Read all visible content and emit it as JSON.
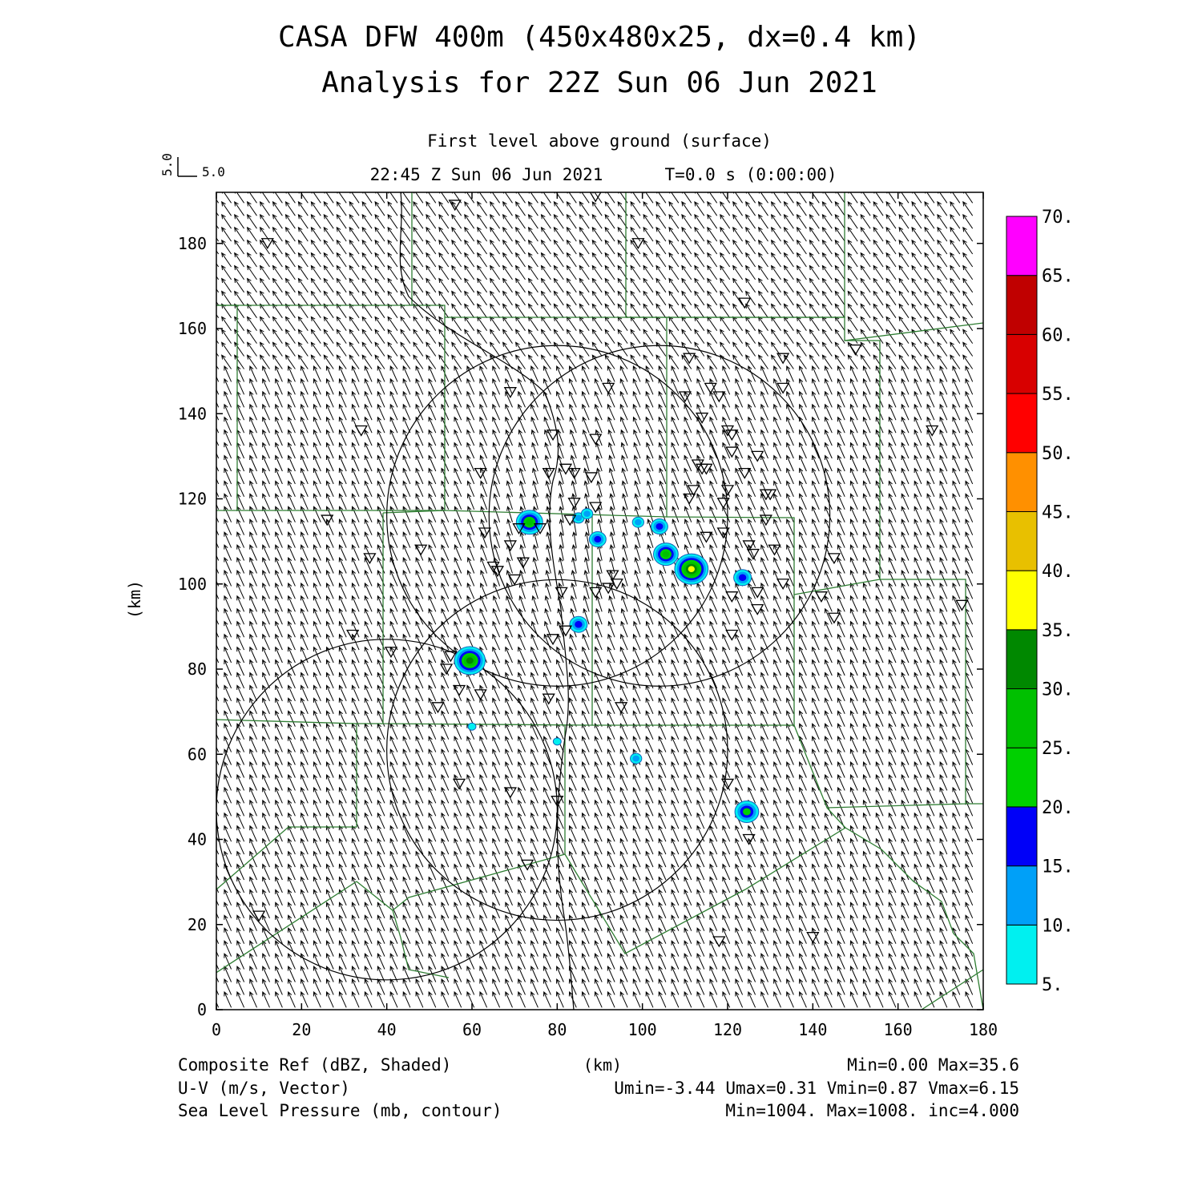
{
  "header": {
    "title_line1": "CASA DFW 400m (450x480x25, dx=0.4 km)",
    "title_line2": "Analysis for 22Z Sun 06 Jun 2021",
    "level": "First level above ground (surface)",
    "valid_time": "22:45 Z Sun 06 Jun 2021",
    "forecast_time": "T=0.0 s (0:00:00)"
  },
  "vector_key": {
    "u_label": "5.0",
    "v_label": "5.0"
  },
  "footer": {
    "field1": "Composite Ref (dBZ, Shaded)",
    "field1_stats": "Min=0.00 Max=35.6",
    "field2": "U-V (m/s, Vector)",
    "field2_stats": "Umin=-3.44 Umax=0.31 Vmin=0.87 Vmax=6.15",
    "field3": "Sea Level Pressure (mb, contour)",
    "field3_stats": "Min=1004. Max=1008. inc=4.000"
  },
  "colors": {
    "county_lines": "#2e7d32",
    "colorbar": [
      "#00f0f0",
      "#00a0f8",
      "#0000f8",
      "#00d000",
      "#00c000",
      "#008800",
      "#ffff00",
      "#e8c000",
      "#ff9000",
      "#ff0000",
      "#d80000",
      "#c00000",
      "#ff00ff"
    ]
  },
  "chart_data": {
    "type": "map",
    "xlabel": "(km)",
    "ylabel": "(km)",
    "xlim": [
      0,
      180
    ],
    "ylim": [
      0,
      192
    ],
    "xticks": [
      "0",
      "20",
      "40",
      "60",
      "80",
      "100",
      "120",
      "140",
      "160",
      "180"
    ],
    "yticks": [
      "0",
      "20",
      "40",
      "60",
      "80",
      "100",
      "120",
      "140",
      "160",
      "180"
    ],
    "colorbar_labels": [
      "5.",
      "10.",
      "15.",
      "20.",
      "25.",
      "30.",
      "35.",
      "40.",
      "45.",
      "50.",
      "55.",
      "60.",
      "65.",
      "70."
    ],
    "wind": {
      "u_mean": -1.6,
      "v_mean": 3.6
    },
    "radar_rings": [
      {
        "cx": 104,
        "cy": 116,
        "r": 40
      },
      {
        "cx": 80,
        "cy": 116,
        "r": 40
      },
      {
        "cx": 80,
        "cy": 61,
        "r": 40
      },
      {
        "cx": 40,
        "cy": 47,
        "r": 40
      }
    ],
    "echoes": [
      {
        "x": 111.5,
        "y": 103.5,
        "dbz": 35
      },
      {
        "x": 59.5,
        "y": 82,
        "dbz": 32
      },
      {
        "x": 73.5,
        "y": 114.5,
        "dbz": 27
      },
      {
        "x": 124.5,
        "y": 46.5,
        "dbz": 24
      },
      {
        "x": 105.5,
        "y": 107,
        "dbz": 25
      },
      {
        "x": 123.5,
        "y": 101.5,
        "dbz": 17
      },
      {
        "x": 85,
        "y": 90.5,
        "dbz": 17
      },
      {
        "x": 89.5,
        "y": 110.5,
        "dbz": 16
      },
      {
        "x": 104,
        "y": 113.5,
        "dbz": 16
      },
      {
        "x": 85,
        "y": 115.5,
        "dbz": 10
      },
      {
        "x": 87,
        "y": 116.5,
        "dbz": 10
      },
      {
        "x": 99,
        "y": 114.5,
        "dbz": 10
      },
      {
        "x": 98.5,
        "y": 59,
        "dbz": 10
      },
      {
        "x": 80,
        "y": 63,
        "dbz": 6
      },
      {
        "x": 60,
        "y": 66.5,
        "dbz": 6
      }
    ],
    "stations": [
      [
        56,
        189
      ],
      [
        89,
        191
      ],
      [
        12,
        180
      ],
      [
        99,
        180
      ],
      [
        124,
        166
      ],
      [
        111,
        153
      ],
      [
        133,
        153
      ],
      [
        69,
        145
      ],
      [
        92,
        146
      ],
      [
        118,
        144
      ],
      [
        116,
        146
      ],
      [
        110,
        144
      ],
      [
        114,
        139
      ],
      [
        133,
        146
      ],
      [
        34,
        136
      ],
      [
        79,
        135
      ],
      [
        89,
        134
      ],
      [
        120,
        136
      ],
      [
        121,
        135
      ],
      [
        168,
        136
      ],
      [
        88,
        125
      ],
      [
        82,
        127
      ],
      [
        113,
        128
      ],
      [
        114,
        127
      ],
      [
        115,
        127
      ],
      [
        124,
        126
      ],
      [
        127,
        130
      ],
      [
        121,
        131
      ],
      [
        62,
        126
      ],
      [
        78,
        126
      ],
      [
        84,
        126
      ],
      [
        120,
        122
      ],
      [
        130,
        121
      ],
      [
        112,
        122
      ],
      [
        129,
        121
      ],
      [
        111,
        120
      ],
      [
        71,
        113
      ],
      [
        119,
        119
      ],
      [
        84,
        119
      ],
      [
        89,
        118
      ],
      [
        129,
        115
      ],
      [
        63,
        112
      ],
      [
        76,
        113
      ],
      [
        83,
        115
      ],
      [
        115,
        111
      ],
      [
        119,
        112
      ],
      [
        125,
        109
      ],
      [
        69,
        109
      ],
      [
        48,
        108
      ],
      [
        126,
        107
      ],
      [
        131,
        108
      ],
      [
        145,
        106
      ],
      [
        36,
        106
      ],
      [
        65,
        104
      ],
      [
        72,
        105
      ],
      [
        66,
        103
      ],
      [
        70,
        101
      ],
      [
        93,
        102
      ],
      [
        92,
        99
      ],
      [
        89,
        98
      ],
      [
        94,
        100
      ],
      [
        121,
        97
      ],
      [
        127,
        98
      ],
      [
        133,
        100
      ],
      [
        142,
        97
      ],
      [
        127,
        94
      ],
      [
        81,
        98
      ],
      [
        145,
        92
      ],
      [
        175,
        95
      ],
      [
        32,
        88
      ],
      [
        121,
        88
      ],
      [
        79,
        87
      ],
      [
        82,
        89
      ],
      [
        41,
        84
      ],
      [
        55,
        83
      ],
      [
        54,
        80
      ],
      [
        57,
        75
      ],
      [
        62,
        74
      ],
      [
        78,
        73
      ],
      [
        95,
        71
      ],
      [
        52,
        71
      ],
      [
        69,
        51
      ],
      [
        80,
        49
      ],
      [
        57,
        53
      ],
      [
        120,
        53
      ],
      [
        125,
        40
      ],
      [
        73,
        34
      ],
      [
        150,
        155
      ],
      [
        10,
        22
      ],
      [
        118,
        16
      ],
      [
        140,
        17
      ],
      [
        26,
        115
      ]
    ]
  }
}
